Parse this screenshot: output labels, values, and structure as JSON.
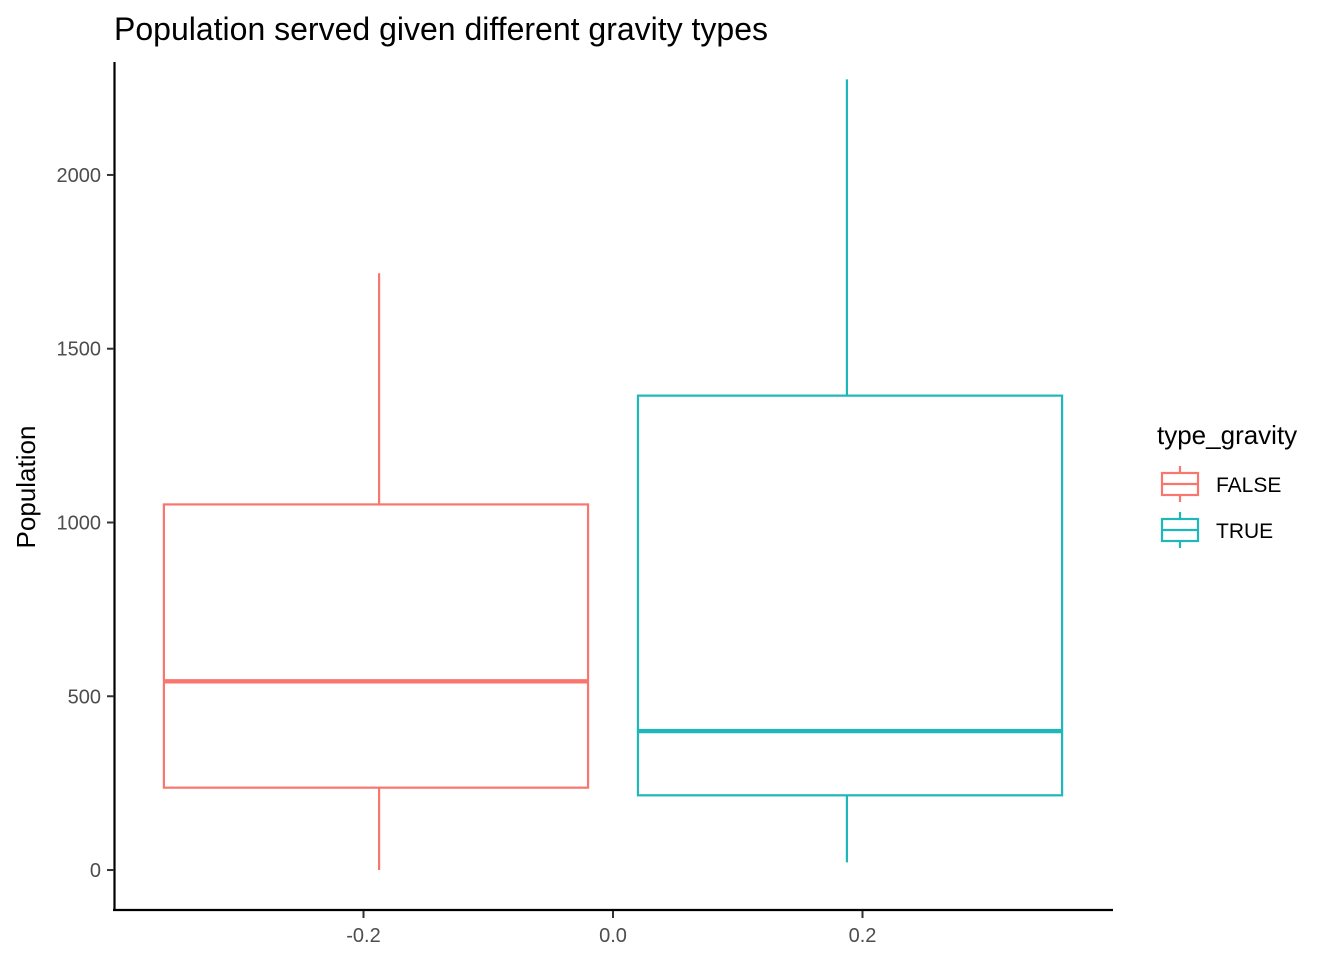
{
  "chart_data": {
    "type": "boxplot",
    "title": "Population served given different gravity types",
    "xlabel": "",
    "ylabel": "Population",
    "xlim": [
      -0.4,
      0.4
    ],
    "ylim": [
      -115,
      2325
    ],
    "x_ticks": [
      -0.2,
      0.0,
      0.2
    ],
    "x_tick_labels": [
      "-0.2",
      "0.0",
      "0.2"
    ],
    "y_ticks": [
      0,
      500,
      1000,
      1500,
      2000
    ],
    "y_tick_labels": [
      "0",
      "500",
      "1000",
      "1500",
      "2000"
    ],
    "grid": false,
    "legend": {
      "title": "type_gravity",
      "position": "right"
    },
    "series": [
      {
        "name": "FALSE",
        "color": "#F8766D",
        "x_center": -0.1875,
        "x_range": [
          -0.36,
          -0.02
        ],
        "whisker_low": 0,
        "q1": 237,
        "median": 543,
        "q3": 1052,
        "whisker_high": 1717
      },
      {
        "name": "TRUE",
        "color": "#1FB7BA",
        "x_center": 0.1875,
        "x_range": [
          0.02,
          0.36
        ],
        "whisker_low": 22,
        "q1": 215,
        "median": 400,
        "q3": 1365,
        "whisker_high": 2275
      }
    ]
  }
}
